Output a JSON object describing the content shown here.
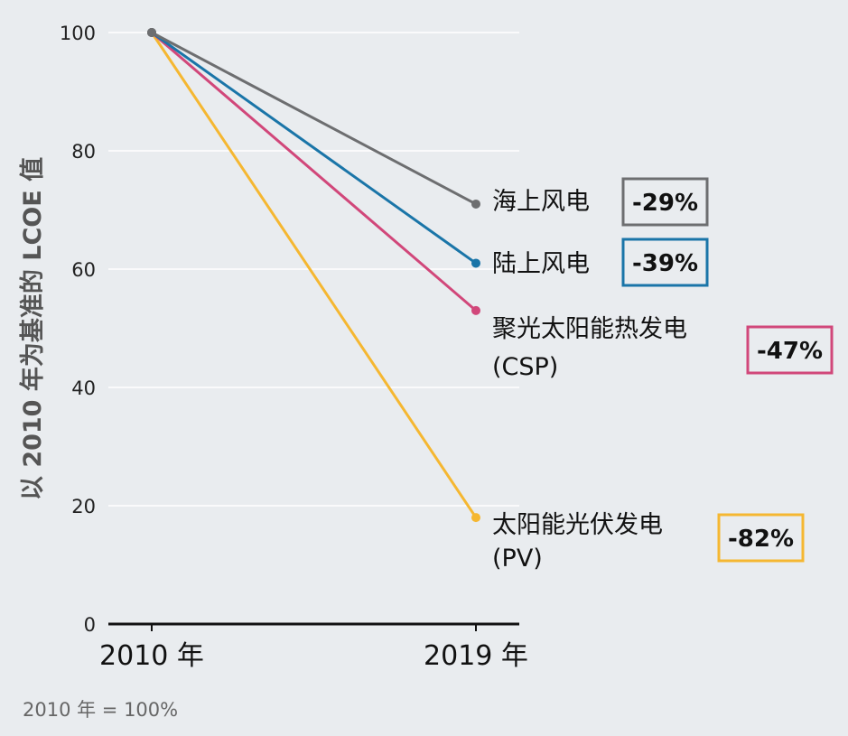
{
  "chart_data": {
    "type": "line",
    "ylabel": "以 2010 年为基准的 LCOE 值",
    "ylim": [
      0,
      100
    ],
    "yticks": [
      0,
      20,
      40,
      60,
      80,
      100
    ],
    "categories": [
      "2010 年",
      "2019 年"
    ],
    "grid": true,
    "note": "2010 年 = 100%",
    "series": [
      {
        "name": "海上风电",
        "label_lines": [
          "海上风电"
        ],
        "values": [
          100,
          71
        ],
        "change": "-29%",
        "color": "#6d6e70"
      },
      {
        "name": "陆上风电",
        "label_lines": [
          "陆上风电"
        ],
        "values": [
          100,
          61
        ],
        "change": "-39%",
        "color": "#1a75a8"
      },
      {
        "name": "聚光太阳能热发电 (CSP)",
        "label_lines": [
          "聚光太阳能热发电",
          "(CSP)"
        ],
        "values": [
          100,
          53
        ],
        "change": "-47%",
        "color": "#d1477a"
      },
      {
        "name": "太阳能光伏发电 (PV)",
        "label_lines": [
          "太阳能光伏发电",
          "(PV)"
        ],
        "values": [
          100,
          18
        ],
        "change": "-82%",
        "color": "#f5b731"
      }
    ]
  }
}
